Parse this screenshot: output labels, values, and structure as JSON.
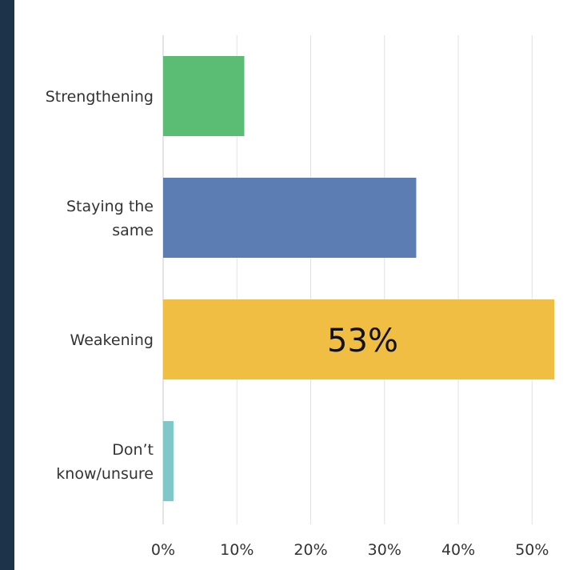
{
  "chart_data": {
    "type": "bar",
    "orientation": "horizontal",
    "categories": [
      "Strengthening",
      "Staying the same",
      "Weakening",
      "Don’t know/unsure"
    ],
    "category_lines": [
      [
        "Strengthening"
      ],
      [
        "Staying the",
        "same"
      ],
      [
        "Weakening"
      ],
      [
        "Don’t",
        "know/unsure"
      ]
    ],
    "values": [
      11,
      34.3,
      53,
      1.4
    ],
    "colors": [
      "#5bbd73",
      "#5b7db4",
      "#efbe43",
      "#7fc7c9"
    ],
    "data_labels": [
      "",
      "",
      "53%",
      ""
    ],
    "xlim": [
      0,
      53
    ],
    "xticks": [
      0,
      10,
      20,
      30,
      40,
      50
    ],
    "xtick_labels": [
      "0%",
      "10%",
      "20%",
      "30%",
      "40%",
      "50%"
    ],
    "grid": true,
    "title": "",
    "xlabel": "",
    "ylabel": ""
  }
}
